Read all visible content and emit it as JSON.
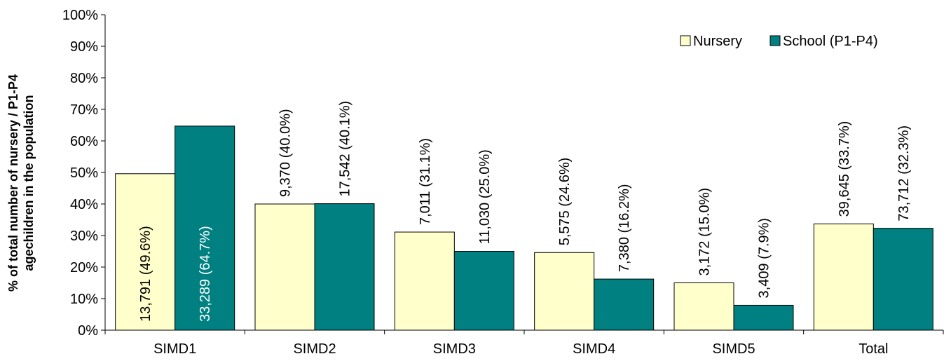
{
  "chart_data": {
    "type": "bar",
    "title": "",
    "xlabel": "",
    "ylabel": [
      "% of  total number of nursery / P1-P4",
      "agechildren in the population"
    ],
    "ylim": [
      0,
      100
    ],
    "yticks": [
      "0%",
      "10%",
      "20%",
      "30%",
      "40%",
      "50%",
      "60%",
      "70%",
      "80%",
      "90%",
      "100%"
    ],
    "grid": false,
    "legend_position": "top-right",
    "categories": [
      "SIMD1",
      "SIMD2",
      "SIMD3",
      "SIMD4",
      "SIMD5",
      "Total"
    ],
    "series": [
      {
        "name": "Nursery",
        "color": "#FFFFCC",
        "values": [
          49.6,
          40.0,
          31.1,
          24.6,
          15.0,
          33.7
        ],
        "labels": [
          "13,791 (49.6%)",
          "9,370 (40.0%)",
          "7,011 (31.1%)",
          "5,575 (24.6%)",
          "3,172 (15.0%)",
          "39,645 (33.7%)"
        ]
      },
      {
        "name": "School (P1-P4)",
        "color": "#008080",
        "values": [
          64.7,
          40.1,
          25.0,
          16.2,
          7.9,
          32.3
        ],
        "labels": [
          "33,289 (64.7%)",
          "17,542 (40.1%)",
          "11,030 (25.0%)",
          "7,380 (16.2%)",
          "3,409 (7.9%)",
          "73,712 (32.3%)"
        ]
      }
    ]
  }
}
